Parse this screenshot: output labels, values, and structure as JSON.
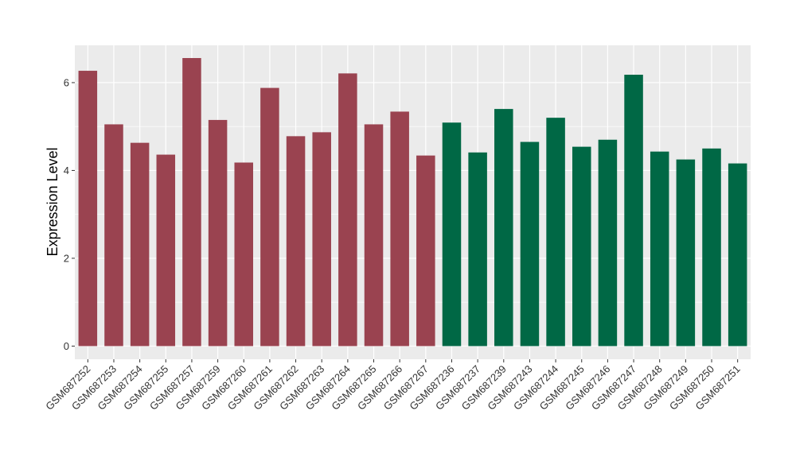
{
  "chart_data": {
    "type": "bar",
    "xlabel": "",
    "ylabel": "Expression Level",
    "ylim": [
      -0.3,
      6.85
    ],
    "yticks": [
      0,
      2,
      4,
      6
    ],
    "grid": true,
    "panel_background": "#ebebeb",
    "grid_color": "#ffffff",
    "categories": [
      "GSM687252",
      "GSM687253",
      "GSM687254",
      "GSM687255",
      "GSM687257",
      "GSM687259",
      "GSM687260",
      "GSM687261",
      "GSM687262",
      "GSM687263",
      "GSM687264",
      "GSM687265",
      "GSM687266",
      "GSM687267",
      "GSM687236",
      "GSM687237",
      "GSM687239",
      "GSM687243",
      "GSM687244",
      "GSM687245",
      "GSM687246",
      "GSM687247",
      "GSM687248",
      "GSM687249",
      "GSM687250",
      "GSM687251"
    ],
    "values": [
      6.27,
      5.05,
      4.63,
      4.36,
      6.56,
      5.15,
      4.18,
      5.88,
      4.78,
      4.87,
      6.21,
      5.05,
      5.34,
      4.34,
      5.09,
      4.41,
      5.4,
      4.65,
      5.2,
      4.54,
      4.7,
      6.18,
      4.43,
      4.25,
      4.5,
      4.16
    ],
    "bar_colors": [
      "#9a4350",
      "#9a4350",
      "#9a4350",
      "#9a4350",
      "#9a4350",
      "#9a4350",
      "#9a4350",
      "#9a4350",
      "#9a4350",
      "#9a4350",
      "#9a4350",
      "#9a4350",
      "#9a4350",
      "#9a4350",
      "#006845",
      "#006845",
      "#006845",
      "#006845",
      "#006845",
      "#006845",
      "#006845",
      "#006845",
      "#006845",
      "#006845",
      "#006845",
      "#006845"
    ]
  }
}
